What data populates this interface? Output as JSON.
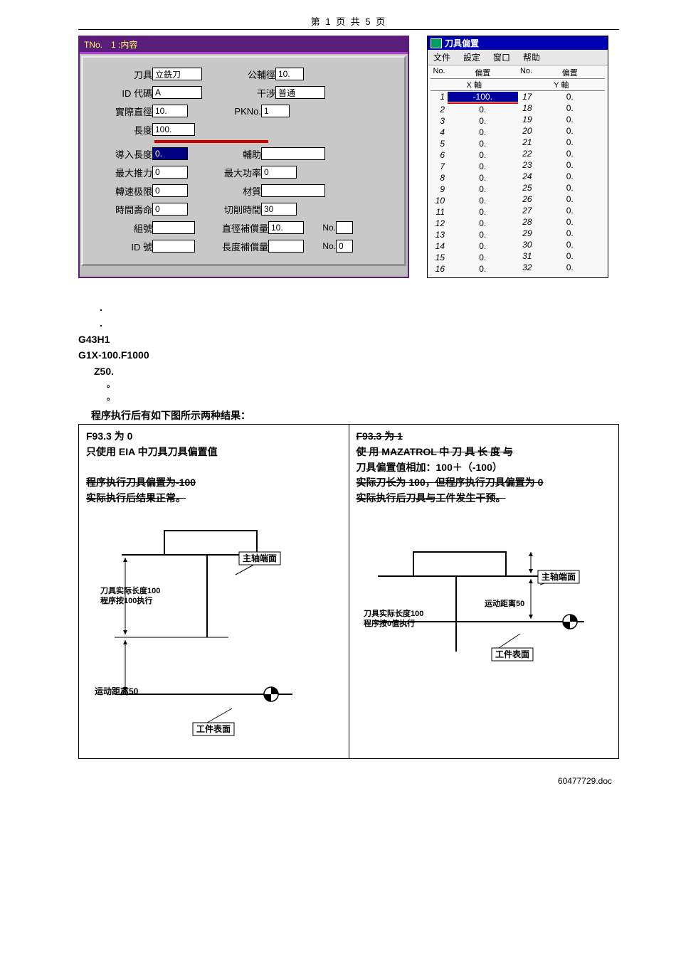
{
  "header": "第 1 页 共 5 页",
  "tool_dialog": {
    "title": "TNo.　1 :内容",
    "rows": [
      {
        "l1": "刀具",
        "v1": "立銑刀",
        "w1": 70,
        "l2": "公輔徑",
        "v2": "10.",
        "w2": 40
      },
      {
        "l1": "ID 代碼",
        "v1": "A",
        "w1": 70,
        "l2": "干涉",
        "v2": "普通",
        "w2": 70
      },
      {
        "l1": "實際直徑",
        "v1": "10.",
        "w1": 50,
        "l2": "PKNo.",
        "v2": "1",
        "w2": 40
      },
      {
        "l1": "長度",
        "v1": "100.",
        "w1": 60
      },
      {
        "l1": "導入長度",
        "v1": "0.",
        "w1": 50,
        "sel": true,
        "l2": "輔助",
        "v2": "",
        "w2": 90
      },
      {
        "l1": "最大推力",
        "v1": "0",
        "w1": 50,
        "l2": "最大功率",
        "v2": "0",
        "w2": 50
      },
      {
        "l1": "轉速极限",
        "v1": "0",
        "w1": 50,
        "l2": "材質",
        "v2": "",
        "w2": 90
      },
      {
        "l1": "時間壽命",
        "v1": "0",
        "w1": 50,
        "l2": "切削時間",
        "v2": "30",
        "w2": 50
      },
      {
        "l1": "組號",
        "v1": "",
        "w1": 60,
        "l2": "直徑補償量",
        "v2": "10.",
        "w2": 50,
        "no": "No.",
        "nv": ""
      },
      {
        "l1": "ID 號",
        "v1": "",
        "w1": 60,
        "l2": "長度補償量",
        "v2": "",
        "w2": 50,
        "no": "No.",
        "nv": "0"
      }
    ],
    "redline_after_row_index": 3
  },
  "offset_win": {
    "title": "刀具偏置",
    "menu": [
      "文件",
      "設定",
      "窗口",
      "帮助"
    ],
    "col_headers": [
      "No.",
      "偏置"
    ],
    "axis_labels": [
      "X 軸",
      "Y 軸"
    ],
    "left_rows": [
      {
        "n": 1,
        "v": "-100.",
        "hl": true
      },
      {
        "n": 2,
        "v": "0."
      },
      {
        "n": 3,
        "v": "0."
      },
      {
        "n": 4,
        "v": "0."
      },
      {
        "n": 5,
        "v": "0."
      },
      {
        "n": 6,
        "v": "0."
      },
      {
        "n": 7,
        "v": "0."
      },
      {
        "n": 8,
        "v": "0."
      },
      {
        "n": 9,
        "v": "0."
      },
      {
        "n": 10,
        "v": "0."
      },
      {
        "n": 11,
        "v": "0."
      },
      {
        "n": 12,
        "v": "0."
      },
      {
        "n": 13,
        "v": "0."
      },
      {
        "n": 14,
        "v": "0."
      },
      {
        "n": 15,
        "v": "0."
      },
      {
        "n": 16,
        "v": "0."
      }
    ],
    "right_rows": [
      {
        "n": 17,
        "v": "0."
      },
      {
        "n": 18,
        "v": "0."
      },
      {
        "n": 19,
        "v": "0."
      },
      {
        "n": 20,
        "v": "0."
      },
      {
        "n": 21,
        "v": "0."
      },
      {
        "n": 22,
        "v": "0."
      },
      {
        "n": 23,
        "v": "0."
      },
      {
        "n": 24,
        "v": "0."
      },
      {
        "n": 25,
        "v": "0."
      },
      {
        "n": 26,
        "v": "0."
      },
      {
        "n": 27,
        "v": "0."
      },
      {
        "n": 28,
        "v": "0."
      },
      {
        "n": 29,
        "v": "0."
      },
      {
        "n": 30,
        "v": "0."
      },
      {
        "n": 31,
        "v": "0."
      },
      {
        "n": 32,
        "v": "0."
      }
    ]
  },
  "program_lines": [
    {
      "t": ".",
      "cls": "dot"
    },
    {
      "t": ".",
      "cls": "dot"
    },
    {
      "t": "G43H1",
      "cls": ""
    },
    {
      "t": "G1X-100.F1000",
      "cls": ""
    },
    {
      "t": "Z50.",
      "cls": "ind"
    },
    {
      "t": "。",
      "cls": "small"
    },
    {
      "t": "。",
      "cls": "small"
    }
  ],
  "compare_intro": "程序执行后有如下图所示两种结果：",
  "compare": {
    "left": {
      "heading": "F93.3 为 0",
      "lines": [
        {
          "t": "只使用 EIA 中刀具刀具偏置值",
          "strike": false
        },
        {
          "t": "",
          "strike": false
        },
        {
          "t": "程序执行刀具偏置为-100",
          "strike": true
        },
        {
          "t": "实际执行后结果正常。",
          "strike": true
        }
      ],
      "diagram": {
        "type": "flowchart",
        "labels": {
          "spindle": "主轴端面",
          "tool_len": "刀具实际长度100",
          "prog_exec": "程序按100执行",
          "move": "运动距离50",
          "work": "工件表面"
        }
      }
    },
    "right": {
      "heading": "F93.3 为 1",
      "lines": [
        {
          "t": "使 用 MAZATROL 中 刀 具 长 度 与",
          "strike": true
        },
        {
          "t": "刀具偏置值相加：100＋（-100）",
          "strike": false
        },
        {
          "t": "实际刀长为 100，但程序执行刀具偏置为 0",
          "strike": true
        },
        {
          "t": "实际执行后刀具与工件发生干预。",
          "strike": true
        }
      ],
      "diagram": {
        "type": "flowchart",
        "labels": {
          "spindle": "主轴端面",
          "tool_len": "刀具实际长度100",
          "prog_exec": "程序按0值执行",
          "move": "运动距离50",
          "work": "工件表面"
        }
      }
    }
  },
  "footer": "60477729.doc",
  "colors": {
    "purple": "#5a1e7a",
    "red": "#d00000",
    "blue": "#0000b0",
    "selbg": "#000080",
    "gray": "#c8c8c8"
  }
}
